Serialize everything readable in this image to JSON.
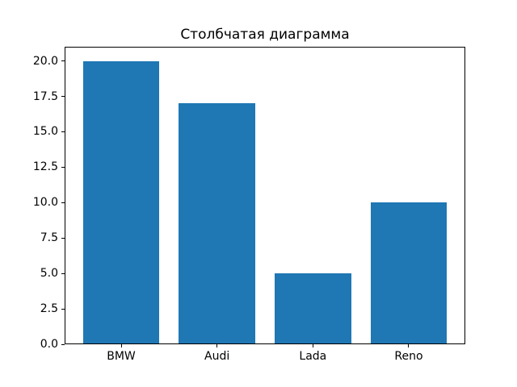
{
  "chart_data": {
    "type": "bar",
    "title": "Столбчатая диаграмма",
    "categories": [
      "BMW",
      "Audi",
      "Lada",
      "Reno"
    ],
    "values": [
      20,
      17,
      5,
      10
    ],
    "xlabel": "",
    "ylabel": "",
    "ylim": [
      0,
      21
    ],
    "yticks": [
      {
        "value": 0,
        "label": "0.0"
      },
      {
        "value": 2.5,
        "label": "2.5"
      },
      {
        "value": 5,
        "label": "5.0"
      },
      {
        "value": 7.5,
        "label": "7.5"
      },
      {
        "value": 10,
        "label": "10.0"
      },
      {
        "value": 12.5,
        "label": "12.5"
      },
      {
        "value": 15,
        "label": "15.0"
      },
      {
        "value": 17.5,
        "label": "17.5"
      },
      {
        "value": 20,
        "label": "20.0"
      }
    ],
    "grid": false,
    "legend": null,
    "bar_width_fraction": 0.8,
    "colors": {
      "bar": "#1f77b4",
      "background": "#ffffff",
      "axis": "#000000",
      "text": "#000000"
    }
  }
}
